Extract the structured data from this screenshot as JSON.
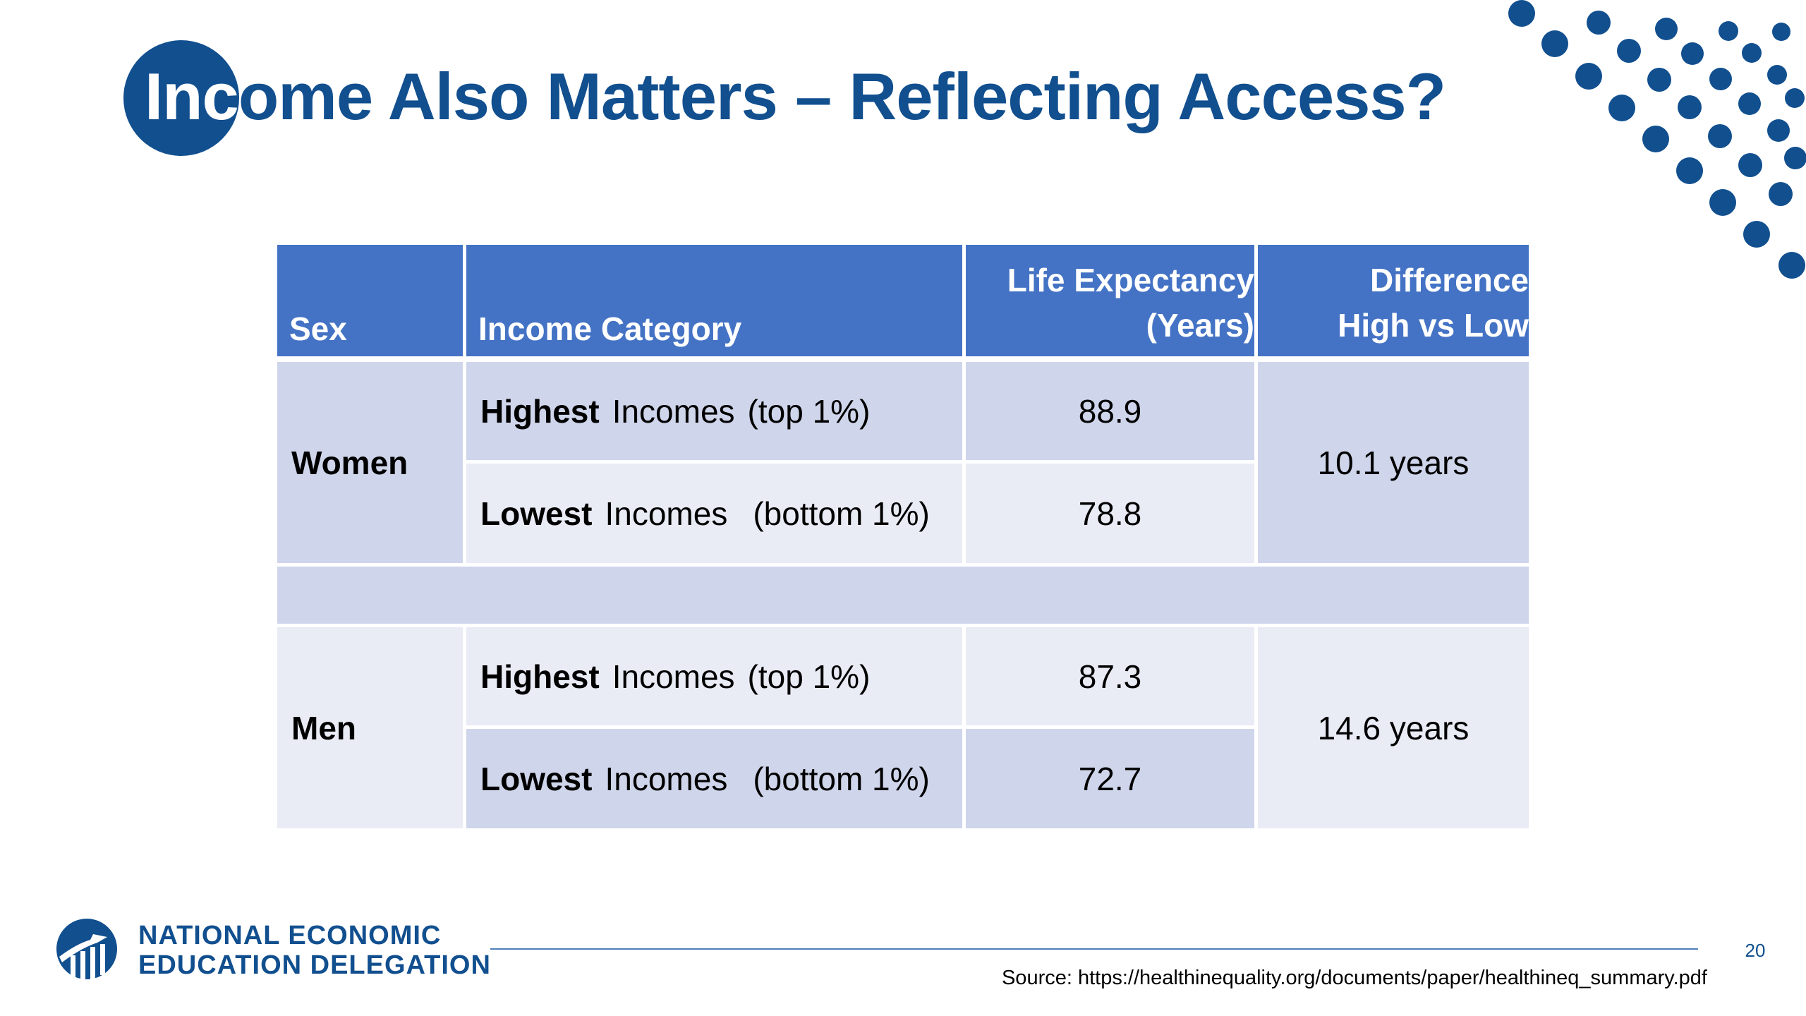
{
  "slide": {
    "title_highlight": "Inc",
    "title_rest": "ome Also Matters – Reflecting Access?",
    "page_number": "20",
    "source": "Source: https://healthinequality.org/documents/paper/healthineq_summary.pdf"
  },
  "table": {
    "headers": {
      "sex": "Sex",
      "income": "Income Category",
      "life_line1": "Life Expectancy",
      "life_line2": "(Years)",
      "diff_line1": "Difference",
      "diff_line2": "High vs Low"
    },
    "women": {
      "label": "Women",
      "high_bold": "Highest",
      "high_rest": "Incomes",
      "high_note": "(top 1%)",
      "high_value": "88.9",
      "low_bold": "Lowest",
      "low_rest": "Incomes",
      "low_note": "(bottom 1%)",
      "low_value": "78.8",
      "difference": "10.1 years"
    },
    "men": {
      "label": "Men",
      "high_bold": "Highest",
      "high_rest": "Incomes",
      "high_note": "(top 1%)",
      "high_value": "87.3",
      "low_bold": "Lowest",
      "low_rest": "Incomes",
      "low_note": "(bottom 1%)",
      "low_value": "72.7",
      "difference": "14.6 years"
    }
  },
  "logo": {
    "line1": "NATIONAL ECONOMIC",
    "line2": "EDUCATION DELEGATION"
  },
  "colors": {
    "brand_blue": "#114f8f",
    "header_blue": "#4473c5",
    "row_dark": "#cfd5ea",
    "row_light": "#e9ebf5"
  }
}
